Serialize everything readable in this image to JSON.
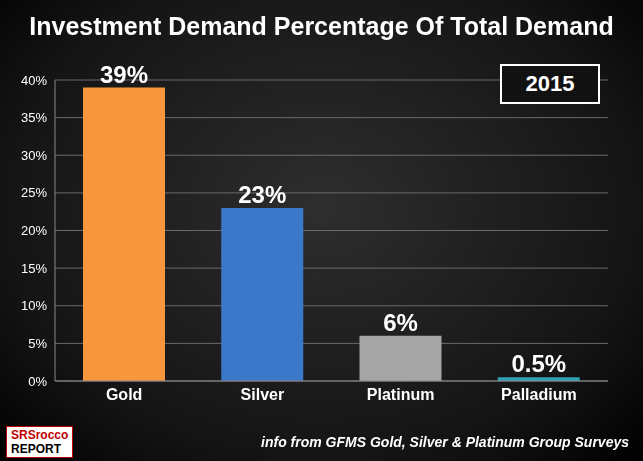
{
  "chart_data": {
    "type": "bar",
    "title": "Investment Demand Percentage Of Total Demand",
    "categories": [
      "Gold",
      "Silver",
      "Platinum",
      "Palladium"
    ],
    "values": [
      39,
      23,
      6,
      0.5
    ],
    "value_labels": [
      "39%",
      "23%",
      "6%",
      "0.5%"
    ],
    "colors": [
      "#f7963c",
      "#3b78c9",
      "#a6a6a6",
      "#2fa3b5"
    ],
    "ylim": [
      0,
      40
    ],
    "yticks": [
      {
        "value": 0,
        "label": "0%"
      },
      {
        "value": 5,
        "label": "5%"
      },
      {
        "value": 10,
        "label": "10%"
      },
      {
        "value": 15,
        "label": "15%"
      },
      {
        "value": 20,
        "label": "20%"
      },
      {
        "value": 25,
        "label": "25%"
      },
      {
        "value": 30,
        "label": "30%"
      },
      {
        "value": 35,
        "label": "35%"
      },
      {
        "value": 40,
        "label": "40%"
      }
    ],
    "grid": true,
    "data_labels": true,
    "annotations": [
      "2015",
      "info from GFMS Gold, Silver & Platinum Group Surveys",
      "SRSrocco REPORT"
    ]
  }
}
